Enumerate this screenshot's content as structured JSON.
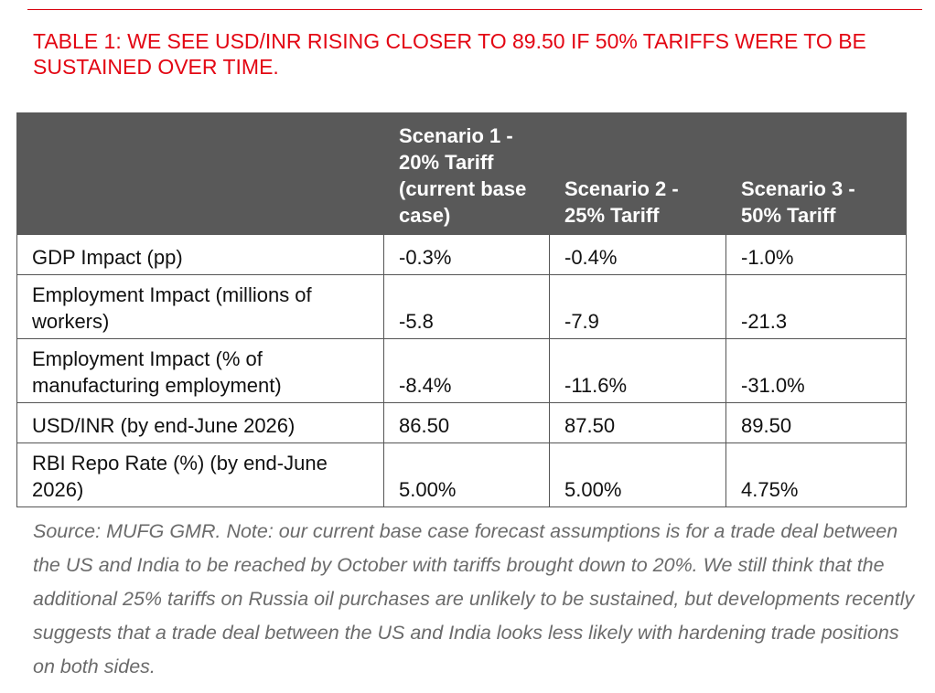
{
  "title": "TABLE 1: WE SEE USD/INR RISING CLOSER TO 89.50 IF 50% TARIFFS WERE TO BE SUSTAINED OVER TIME.",
  "table": {
    "headers": [
      "",
      "Scenario 1 - 20% Tariff (current base case)",
      "Scenario 2 - 25% Tariff",
      "Scenario 3 - 50% Tariff"
    ],
    "rows": [
      {
        "label": "GDP Impact (pp)",
        "values": [
          "-0.3%",
          "-0.4%",
          "-1.0%"
        ]
      },
      {
        "label": "Employment Impact (millions of workers)",
        "values": [
          "-5.8",
          "-7.9",
          "-21.3"
        ]
      },
      {
        "label": "Employment Impact (% of manufacturing employment)",
        "values": [
          "-8.4%",
          "-11.6%",
          "-31.0%"
        ]
      },
      {
        "label": "USD/INR (by end-June 2026)",
        "values": [
          "86.50",
          "87.50",
          "89.50"
        ]
      },
      {
        "label": "RBI Repo Rate (%) (by end-June 2026)",
        "values": [
          "5.00%",
          "5.00%",
          "4.75%"
        ]
      }
    ]
  },
  "source_note": "Source: MUFG GMR. Note: our current base case forecast assumptions is for a trade deal between the US and India to be reached by October with tariffs brought down to 20%. We still think that the additional 25% tariffs on Russia oil purchases are unlikely to be sustained, but developments recently suggests that a trade deal between the US and India looks less likely with hardening trade positions on both sides.",
  "colors": {
    "title": "#e30613",
    "header_background": "#595959",
    "header_text": "#ffffff",
    "note_text": "#6b6b6b"
  }
}
